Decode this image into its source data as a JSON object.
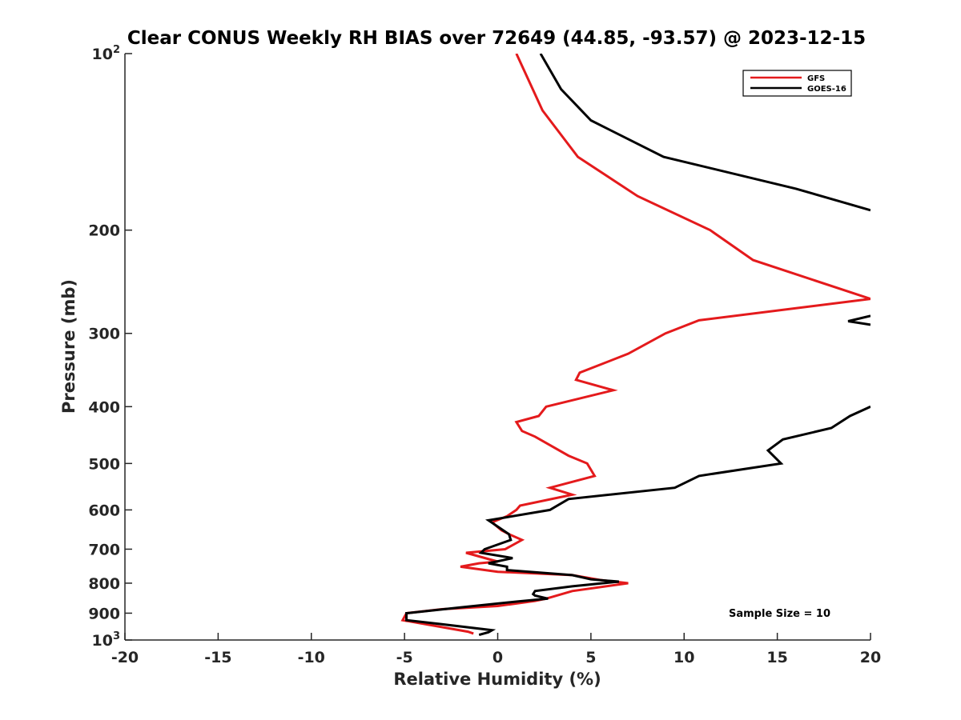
{
  "chart_data": {
    "type": "line",
    "title": "Clear CONUS Weekly RH BIAS over 72649 (44.85, -93.57) @ 2023-12-15",
    "xlabel": "Relative Humidity (%)",
    "ylabel": "Pressure (mb)",
    "xlim": [
      -20,
      20
    ],
    "ylim": [
      100,
      1000
    ],
    "yscale": "log",
    "y_reversed": true,
    "grid": false,
    "legend_position": "top-right",
    "x_ticks": [
      "-20",
      "-15",
      "-10",
      "-5",
      "0",
      "5",
      "10",
      "15",
      "20"
    ],
    "y_ticks": [
      {
        "value": 100,
        "base": "10",
        "exp": "2"
      },
      {
        "value": 200,
        "label": "200"
      },
      {
        "value": 300,
        "label": "300"
      },
      {
        "value": 400,
        "label": "400"
      },
      {
        "value": 500,
        "label": "500"
      },
      {
        "value": 600,
        "label": "600"
      },
      {
        "value": 700,
        "label": "700"
      },
      {
        "value": 800,
        "label": "800"
      },
      {
        "value": 900,
        "label": "900"
      },
      {
        "value": 1000,
        "base": "10",
        "exp": "3"
      }
    ],
    "annotation": "Sample Size = 10",
    "series": [
      {
        "name": "GFS",
        "color": "#e41a1c",
        "points": [
          [
            -1.3,
            975
          ],
          [
            -1.6,
            968
          ],
          [
            -5.1,
            925
          ],
          [
            -4.9,
            900
          ],
          [
            -3.0,
            886
          ],
          [
            0.0,
            875
          ],
          [
            2.0,
            858
          ],
          [
            2.6,
            850
          ],
          [
            4.0,
            825
          ],
          [
            7.0,
            800
          ],
          [
            5.5,
            790
          ],
          [
            4.0,
            775
          ],
          [
            0.0,
            765
          ],
          [
            -2.0,
            750
          ],
          [
            -1.0,
            740
          ],
          [
            0.0,
            735
          ],
          [
            -1.7,
            710
          ],
          [
            0.4,
            700
          ],
          [
            1.3,
            675
          ],
          [
            0.6,
            660
          ],
          [
            0.2,
            650
          ],
          [
            -0.3,
            630
          ],
          [
            0.5,
            615
          ],
          [
            1.0,
            600
          ],
          [
            1.2,
            590
          ],
          [
            4.0,
            565
          ],
          [
            2.8,
            550
          ],
          [
            5.2,
            525
          ],
          [
            4.8,
            500
          ],
          [
            3.8,
            485
          ],
          [
            2.0,
            450
          ],
          [
            1.3,
            440
          ],
          [
            1.0,
            425
          ],
          [
            2.2,
            415
          ],
          [
            2.6,
            400
          ],
          [
            6.2,
            375
          ],
          [
            4.2,
            360
          ],
          [
            4.4,
            350
          ],
          [
            7.0,
            325
          ],
          [
            9.0,
            300
          ],
          [
            10.8,
            285
          ],
          [
            20.0,
            262
          ],
          [
            13.7,
            225
          ],
          [
            11.4,
            200
          ],
          [
            7.5,
            175
          ],
          [
            4.3,
            150
          ],
          [
            2.4,
            125
          ],
          [
            1.6,
            110
          ],
          [
            1.0,
            100
          ]
        ]
      },
      {
        "name": "GOES-16",
        "color": "#000000",
        "segments": [
          [
            [
              -1.0,
              980
            ],
            [
              -0.5,
              970
            ],
            [
              -0.3,
              962
            ],
            [
              -3.0,
              940
            ],
            [
              -4.9,
              925
            ],
            [
              -4.9,
              900
            ],
            [
              -2.0,
              880
            ],
            [
              1.0,
              860
            ],
            [
              2.7,
              850
            ],
            [
              2.0,
              840
            ],
            [
              1.9,
              835
            ],
            [
              2.0,
              825
            ],
            [
              4.0,
              810
            ],
            [
              6.5,
              795
            ],
            [
              5.0,
              788
            ],
            [
              4.0,
              775
            ],
            [
              0.5,
              760
            ],
            [
              0.5,
              750
            ],
            [
              -0.5,
              740
            ],
            [
              0.8,
              725
            ],
            [
              -0.9,
              710
            ],
            [
              -0.7,
              700
            ],
            [
              0.7,
              675
            ],
            [
              0.6,
              660
            ],
            [
              -0.5,
              625
            ],
            [
              2.8,
              600
            ],
            [
              3.8,
              575
            ],
            [
              9.5,
              550
            ],
            [
              10.8,
              525
            ],
            [
              15.2,
              500
            ],
            [
              14.5,
              475
            ],
            [
              15.3,
              455
            ],
            [
              17.9,
              435
            ],
            [
              18.9,
              415
            ],
            [
              20.0,
              400
            ]
          ],
          [
            [
              20.0,
              290
            ],
            [
              18.8,
              286
            ],
            [
              20.0,
              280
            ]
          ],
          [
            [
              20.0,
              185
            ],
            [
              16.0,
              170
            ],
            [
              8.9,
              150
            ],
            [
              5.0,
              130
            ],
            [
              3.4,
              115
            ],
            [
              2.3,
              100
            ]
          ]
        ]
      }
    ]
  }
}
